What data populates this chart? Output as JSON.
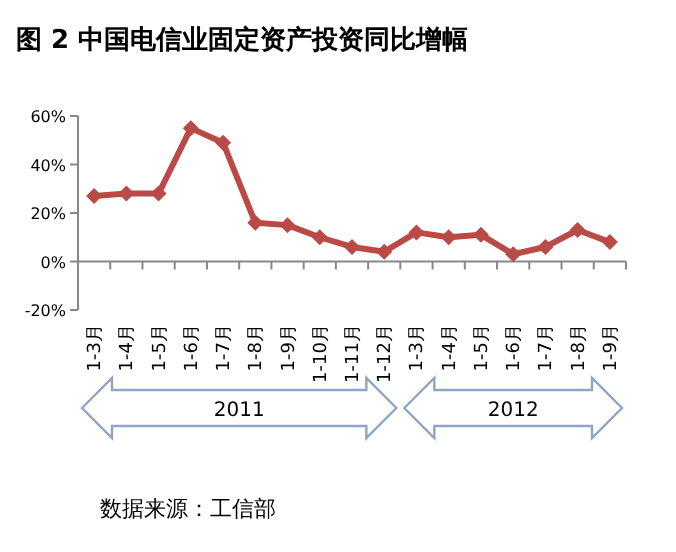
{
  "chart_data": {
    "type": "line",
    "title": "图 2  中国电信业固定资产投资同比增幅",
    "categories": [
      "1-3月",
      "1-4月",
      "1-5月",
      "1-6月",
      "1-7月",
      "1-8月",
      "1-9月",
      "1-10月",
      "1-11月",
      "1-12月",
      "1-3月",
      "1-4月",
      "1-5月",
      "1-6月",
      "1-7月",
      "1-8月",
      "1-9月"
    ],
    "series": [
      {
        "color": "#b94a46",
        "values": [
          27,
          28,
          28,
          55,
          49,
          16,
          15,
          10,
          6,
          4,
          12,
          10,
          11,
          3,
          6,
          13,
          8
        ]
      }
    ],
    "ylim": [
      -20,
      60
    ],
    "yticks": [
      {
        "value": -20,
        "label": "-20%"
      },
      {
        "value": 0,
        "label": "0%"
      },
      {
        "value": 20,
        "label": "20%"
      },
      {
        "value": 40,
        "label": "40%"
      },
      {
        "value": 60,
        "label": "60%"
      }
    ],
    "marker": "diamond",
    "line_style": "solid",
    "annotations": [
      "2011",
      "2012",
      "数据来源：工信部"
    ]
  }
}
